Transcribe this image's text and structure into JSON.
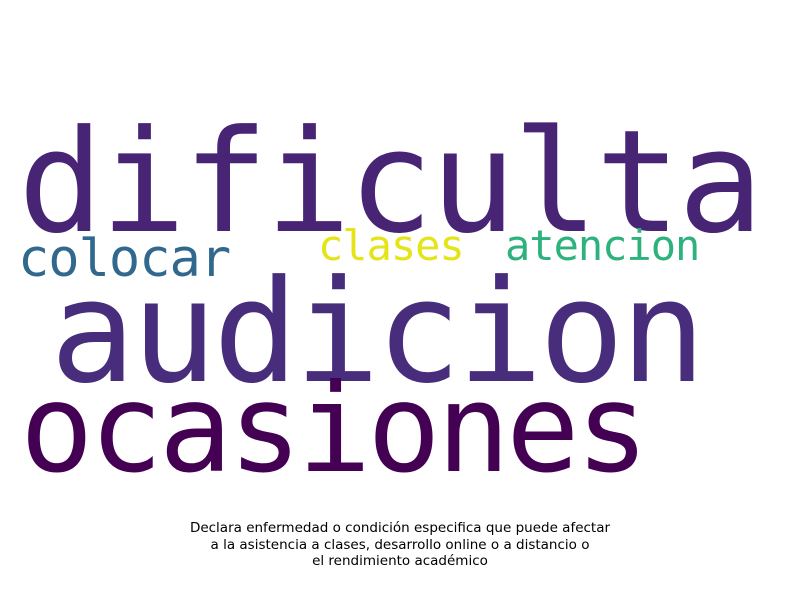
{
  "wordcloud": {
    "words": [
      {
        "id": "dificulta",
        "text": "dificulta",
        "color": "#482475"
      },
      {
        "id": "audicion",
        "text": "audicion",
        "color": "#472d7b"
      },
      {
        "id": "ocasiones",
        "text": "ocasiones",
        "color": "#440154"
      },
      {
        "id": "colocar",
        "text": "colocar",
        "color": "#31688e"
      },
      {
        "id": "clases",
        "text": "clases",
        "color": "#e5e419"
      },
      {
        "id": "atencion",
        "text": "atencion",
        "color": "#2db27d"
      }
    ]
  },
  "caption": {
    "line1": "Declara enfermedad o condición especifica que puede afectar",
    "line2": "a la asistencia a clases, desarrollo online o a distancio o",
    "line3": "el rendimiento académico"
  }
}
